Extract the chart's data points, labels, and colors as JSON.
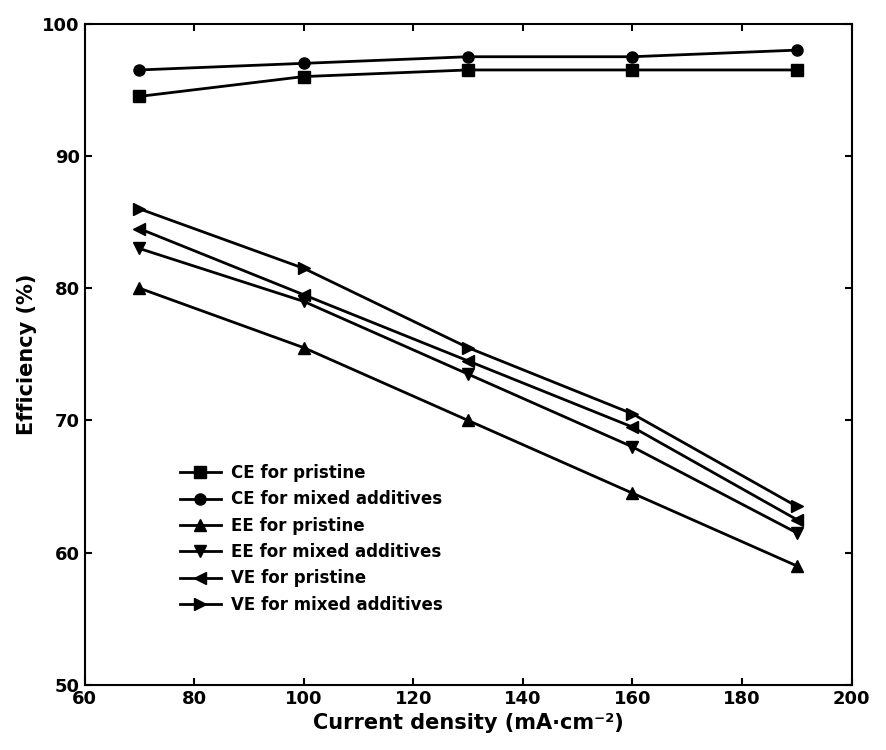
{
  "x": [
    70,
    100,
    130,
    160,
    190
  ],
  "CE_pristine": [
    94.5,
    96.0,
    96.5,
    96.5,
    96.5
  ],
  "CE_mixed": [
    96.5,
    97.0,
    97.5,
    97.5,
    98.0
  ],
  "EE_pristine": [
    80.0,
    75.5,
    70.0,
    64.5,
    59.0
  ],
  "EE_mixed": [
    83.0,
    79.0,
    73.5,
    68.0,
    61.5
  ],
  "VE_pristine": [
    84.5,
    79.5,
    74.5,
    69.5,
    62.5
  ],
  "VE_mixed": [
    86.0,
    81.5,
    75.5,
    70.5,
    63.5
  ],
  "xlabel": "Current density (mA·cm⁻²)",
  "ylabel": "Efficiency (%)",
  "xlim": [
    60,
    200
  ],
  "ylim": [
    50,
    100
  ],
  "xticks": [
    60,
    80,
    100,
    120,
    140,
    160,
    180,
    200
  ],
  "yticks": [
    50,
    60,
    70,
    80,
    90,
    100
  ],
  "line_color": "#000000",
  "linewidth": 2.0,
  "markersize": 8
}
